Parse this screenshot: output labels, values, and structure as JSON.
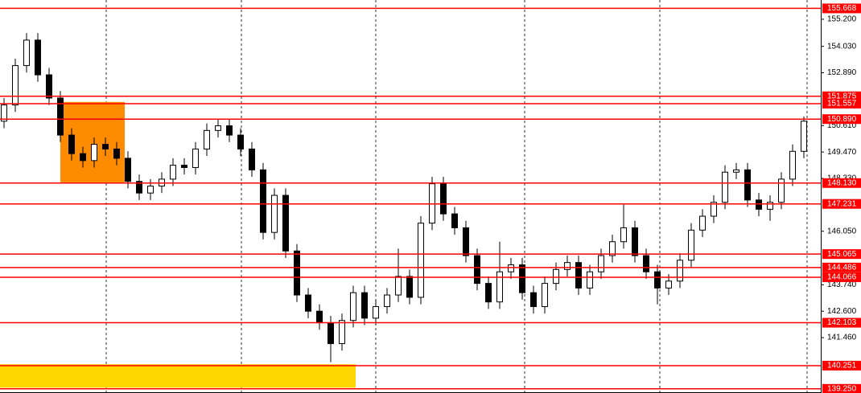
{
  "chart_data": {
    "type": "candlestick",
    "open": [
      150.8,
      151.5,
      153.2,
      154.3,
      152.8,
      151.8,
      150.2,
      149.4,
      149.1,
      149.8,
      149.6,
      149.2,
      148.2,
      147.7,
      148.0,
      148.3,
      148.9,
      148.8,
      149.6,
      150.4,
      150.6,
      150.2,
      149.6,
      148.7,
      146.0,
      147.6,
      145.2,
      143.3,
      142.6,
      142.1,
      141.2,
      142.2,
      143.4,
      142.3,
      142.8,
      143.3,
      144.1,
      143.2,
      146.4,
      148.1,
      146.8,
      146.2,
      145.0,
      143.8,
      143.0,
      144.3,
      144.6,
      143.4,
      142.8,
      143.8,
      144.4,
      144.7,
      143.6,
      144.3,
      145.0,
      145.6,
      146.2,
      145.0,
      144.3,
      143.6,
      143.9,
      144.8,
      146.1,
      146.7,
      147.3,
      148.6,
      148.7,
      147.4,
      147.0,
      147.3,
      148.3,
      149.5
    ],
    "high": [
      151.8,
      153.5,
      154.6,
      154.6,
      153.1,
      152.1,
      150.5,
      149.7,
      150.1,
      150.1,
      149.9,
      149.5,
      148.5,
      148.3,
      148.6,
      149.2,
      149.2,
      149.9,
      150.7,
      150.9,
      150.9,
      150.5,
      149.9,
      149.0,
      147.9,
      147.9,
      145.5,
      143.6,
      142.9,
      142.4,
      142.5,
      143.7,
      143.7,
      143.1,
      143.6,
      145.3,
      144.4,
      146.7,
      148.4,
      148.4,
      147.1,
      146.5,
      145.3,
      144.1,
      145.6,
      144.9,
      144.9,
      143.7,
      144.1,
      144.7,
      145.0,
      145.0,
      144.6,
      145.3,
      145.9,
      147.2,
      146.5,
      145.3,
      144.6,
      144.2,
      145.1,
      146.4,
      147.0,
      147.6,
      148.9,
      149.0,
      149.0,
      147.7,
      147.6,
      148.6,
      149.8,
      151.0
    ],
    "low": [
      150.5,
      151.2,
      152.9,
      152.5,
      151.5,
      149.9,
      149.1,
      148.8,
      148.8,
      149.3,
      148.9,
      147.9,
      147.4,
      147.4,
      147.7,
      148.0,
      148.5,
      148.5,
      149.3,
      150.1,
      149.9,
      149.3,
      148.4,
      145.7,
      145.7,
      144.9,
      143.0,
      142.3,
      141.8,
      140.4,
      140.9,
      141.9,
      142.0,
      142.0,
      142.5,
      143.0,
      142.9,
      142.9,
      146.1,
      146.5,
      145.9,
      144.7,
      143.5,
      142.7,
      142.7,
      144.0,
      143.1,
      142.5,
      142.5,
      143.5,
      144.1,
      143.3,
      143.3,
      144.0,
      144.7,
      145.3,
      144.7,
      144.0,
      142.9,
      143.3,
      143.6,
      144.5,
      145.8,
      146.4,
      147.0,
      148.3,
      147.1,
      146.7,
      146.5,
      147.0,
      148.0,
      149.2
    ],
    "close": [
      151.5,
      153.2,
      154.3,
      152.8,
      151.8,
      150.2,
      149.4,
      149.1,
      149.8,
      149.6,
      149.2,
      148.2,
      147.7,
      148.0,
      148.3,
      148.9,
      148.8,
      149.6,
      150.4,
      150.6,
      150.2,
      149.6,
      148.7,
      146.0,
      147.6,
      145.2,
      143.3,
      142.6,
      142.1,
      141.2,
      142.2,
      143.4,
      142.3,
      142.8,
      143.3,
      144.1,
      143.2,
      146.4,
      148.1,
      146.8,
      146.2,
      145.0,
      143.8,
      143.0,
      144.3,
      144.6,
      143.4,
      142.8,
      143.8,
      144.4,
      144.7,
      143.6,
      144.3,
      145.0,
      145.6,
      146.2,
      145.0,
      144.3,
      143.6,
      143.9,
      144.8,
      146.1,
      146.7,
      147.3,
      148.6,
      148.7,
      147.4,
      147.0,
      147.3,
      148.3,
      149.5,
      150.8
    ],
    "ylim": [
      139.07,
      156.03
    ],
    "yticks": [
      {
        "value": 155.2,
        "label": "155.200"
      },
      {
        "value": 154.03,
        "label": "154.030"
      },
      {
        "value": 152.89,
        "label": "152.890"
      },
      {
        "value": 150.61,
        "label": "150.610"
      },
      {
        "value": 149.47,
        "label": "149.470"
      },
      {
        "value": 148.33,
        "label": "148.330"
      },
      {
        "value": 146.05,
        "label": "146.050"
      },
      {
        "value": 143.74,
        "label": "143.740"
      },
      {
        "value": 142.6,
        "label": "142.600"
      },
      {
        "value": 141.46,
        "label": "141.460"
      }
    ],
    "levels": [
      155.668,
      151.875,
      151.557,
      {
        "value": 150.89,
        "label": "150.890"
      },
      {
        "value": 148.13,
        "label": "148.130"
      },
      147.231,
      145.065,
      144.486,
      144.066,
      142.103,
      140.251,
      {
        "value": 139.25,
        "label": "139.250"
      }
    ],
    "level_color": "#ff0000",
    "zones": [
      {
        "color": "#ff8c00",
        "range": [
          148.16,
          151.63
        ]
      },
      {
        "color": "#ffd500",
        "range": [
          139.3,
          140.31
        ]
      }
    ]
  }
}
